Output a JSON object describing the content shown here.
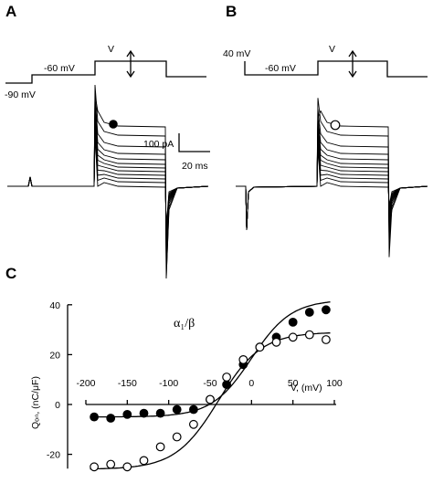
{
  "panel_a": {
    "label": "A",
    "holding_label": "-90 mV",
    "prepulse_label": "-60 mV",
    "test_label": "V",
    "marker": "filled-circle",
    "scale_current": "100 pA",
    "scale_time": "20 ms"
  },
  "panel_b": {
    "label": "B",
    "holding_label": "40 mV",
    "prepulse_label": "-60 mV",
    "test_label": "V",
    "marker": "open-circle"
  },
  "panel_c": {
    "label": "C",
    "title": "α₁/β",
    "ylabel": "Qₒₙ, (nC/μF)",
    "xlabel": "V, (mV)"
  },
  "chart_data": {
    "type": "scatter",
    "title": "α₁/β",
    "xlabel": "V, (mV)",
    "ylabel": "Qₒₙ, (nC/μF)",
    "xlim": [
      -200,
      100
    ],
    "ylim": [
      -25,
      40
    ],
    "xticks": [
      -200,
      -150,
      -100,
      -50,
      0,
      50,
      100
    ],
    "yticks": [
      -20,
      0,
      20,
      40
    ],
    "series": [
      {
        "marker": "filled",
        "x": [
          -190,
          -170,
          -150,
          -130,
          -110,
          -90,
          -70,
          -50,
          -30,
          -10,
          10,
          30,
          50,
          70,
          90
        ],
        "y": [
          -5,
          -5.5,
          -4,
          -3.5,
          -3.5,
          -2,
          -2,
          2,
          8,
          16,
          23,
          27,
          33,
          37,
          38
        ]
      },
      {
        "marker": "open",
        "x": [
          -190,
          -170,
          -150,
          -130,
          -110,
          -90,
          -70,
          -50,
          -30,
          -10,
          10,
          30,
          50,
          70,
          90
        ],
        "y": [
          -25,
          -24,
          -25,
          -22.5,
          -17,
          -13,
          -8,
          2,
          11,
          18,
          23,
          25,
          27,
          28,
          26
        ]
      }
    ],
    "fits": [
      {
        "for": "filled",
        "qmin": -5,
        "qmax": 42,
        "vhalf": 0,
        "k": 24
      },
      {
        "for": "open",
        "qmin": -26,
        "qmax": 29,
        "vhalf": -40,
        "k": 26
      }
    ]
  }
}
